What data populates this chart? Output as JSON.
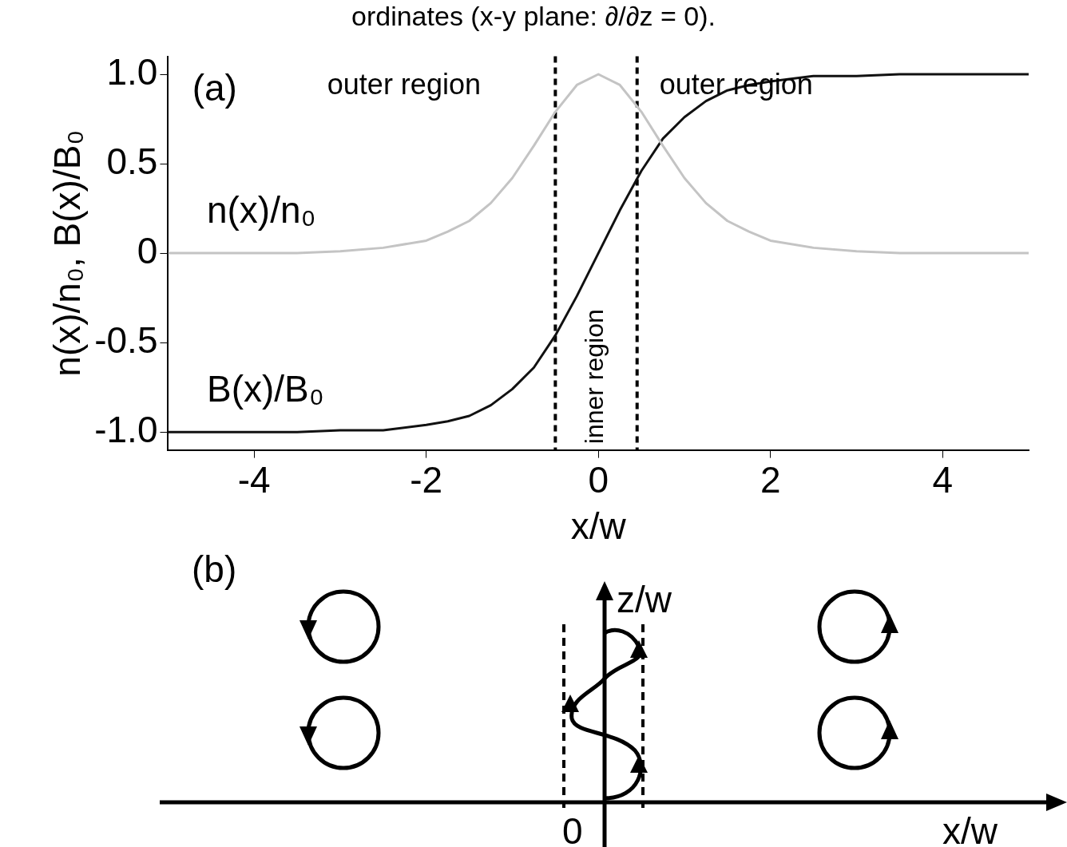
{
  "chart_data": [
    {
      "type": "line",
      "title": "ordinates (x-y plane: ∂/∂z = 0).",
      "xlabel": "x/w",
      "ylabel": "n(x)/n₀, B(x)/B₀",
      "x": [
        -5,
        -4,
        -3.5,
        -3,
        -2.5,
        -2,
        -1.75,
        -1.5,
        -1.25,
        -1,
        -0.75,
        -0.5,
        -0.25,
        0,
        0.25,
        0.5,
        0.75,
        1,
        1.25,
        1.5,
        1.75,
        2,
        2.5,
        3,
        3.5,
        4,
        5
      ],
      "series": [
        {
          "name": "n(x)/n₀",
          "color": "#c4c4c4",
          "values": [
            0,
            0,
            0,
            0.01,
            0.03,
            0.07,
            0.12,
            0.18,
            0.28,
            0.42,
            0.6,
            0.79,
            0.94,
            1,
            0.94,
            0.79,
            0.6,
            0.42,
            0.28,
            0.18,
            0.12,
            0.07,
            0.03,
            0.01,
            0,
            0,
            0
          ]
        },
        {
          "name": "B(x)/B₀",
          "color": "#111111",
          "values": [
            -1,
            -1,
            -1,
            -0.99,
            -0.99,
            -0.96,
            -0.94,
            -0.91,
            -0.85,
            -0.76,
            -0.64,
            -0.46,
            -0.24,
            0,
            0.24,
            0.46,
            0.64,
            0.76,
            0.85,
            0.91,
            0.94,
            0.96,
            0.99,
            0.99,
            1,
            1,
            1
          ]
        }
      ],
      "xlim": [
        -5,
        5
      ],
      "xticks": [
        -4,
        -2,
        0,
        2,
        4
      ],
      "ylim": [
        -1.1,
        1.1
      ],
      "yticks": [
        {
          "value": 1,
          "label": "1.0"
        },
        0.5,
        0,
        -0.5,
        {
          "value": -1,
          "label": "-1.0"
        }
      ],
      "ref_lines": [
        {
          "axis": "x",
          "value": -0.5,
          "line_style": "dashed",
          "color": "#000000"
        },
        {
          "axis": "x",
          "value": 0.45,
          "line_style": "dashed",
          "color": "#000000"
        }
      ],
      "annotations": [
        "(a)",
        "outer region",
        "outer region",
        "inner region"
      ],
      "grid": false,
      "legend": false,
      "marker": "none",
      "line_style": "solid"
    },
    {
      "type": "other",
      "xlabel": "x/w",
      "ylabel": "z/w",
      "annotations": [
        "(b)",
        "0"
      ]
    }
  ]
}
